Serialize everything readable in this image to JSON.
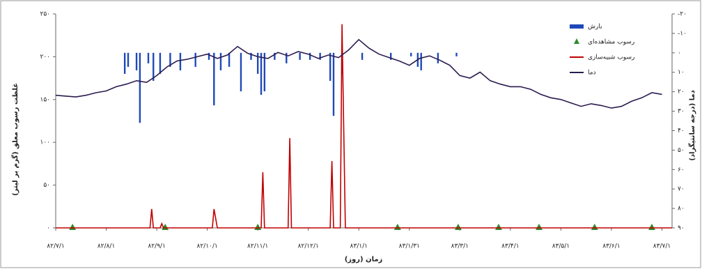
{
  "chart_data": {
    "type": "combo",
    "x_label": "زمان (روز)",
    "y_label": "غلظت رسوب معلق (گرم بر لیتر)",
    "y2_label": "دما (درجه سانتیگراد)",
    "xlim": [
      0,
      366
    ],
    "xticks": [
      {
        "value": 0,
        "label": "۸۲/۷/۱"
      },
      {
        "value": 30,
        "label": "۸۲/۸/۱"
      },
      {
        "value": 60,
        "label": "۸۲/۹/۱"
      },
      {
        "value": 90,
        "label": "۸۲/۱۰/۱"
      },
      {
        "value": 120,
        "label": "۸۲/۱۱/۱"
      },
      {
        "value": 150,
        "label": "۸۲/۱۲/۱"
      },
      {
        "value": 180,
        "label": "۸۳/۱/۱"
      },
      {
        "value": 210,
        "label": "۸۳/۱/۳۱"
      },
      {
        "value": 240,
        "label": "۸۳/۳/۱"
      },
      {
        "value": 270,
        "label": "۸۳/۴/۱"
      },
      {
        "value": 300,
        "label": "۸۳/۵/۱"
      },
      {
        "value": 330,
        "label": "۸۳/۶/۱"
      },
      {
        "value": 360,
        "label": "۸۳/۷/۱"
      }
    ],
    "ylim": [
      0,
      250
    ],
    "yticks": [
      {
        "value": 0,
        "label": "۰"
      },
      {
        "value": 50,
        "label": "۵۰"
      },
      {
        "value": 100,
        "label": "۱۰۰"
      },
      {
        "value": 150,
        "label": "۱۵۰"
      },
      {
        "value": 200,
        "label": "۲۰۰"
      },
      {
        "value": 250,
        "label": "۲۵۰"
      }
    ],
    "y2lim": [
      -20,
      90
    ],
    "y2_inverted": true,
    "y2ticks": [
      {
        "value": -20,
        "label": "-۲۰"
      },
      {
        "value": -10,
        "label": "-۱۰"
      },
      {
        "value": 0,
        "label": "۰"
      },
      {
        "value": 10,
        "label": "۱۰"
      },
      {
        "value": 20,
        "label": "۲۰"
      },
      {
        "value": 30,
        "label": "۳۰"
      },
      {
        "value": 40,
        "label": "۴۰"
      },
      {
        "value": 50,
        "label": "۵۰"
      },
      {
        "value": 60,
        "label": "۶۰"
      },
      {
        "value": 70,
        "label": "۷۰"
      },
      {
        "value": 80,
        "label": "۸۰"
      },
      {
        "value": 90,
        "label": "۹۰"
      }
    ],
    "legend": "upper right",
    "series": [
      {
        "name": "بارش",
        "type": "bar",
        "axis": "y2",
        "color": "#1f49b8",
        "x": [
          41,
          43,
          48,
          50,
          55,
          58,
          62,
          68,
          74,
          83,
          91,
          94,
          98,
          103,
          110,
          116,
          120,
          122,
          124,
          130,
          137,
          145,
          151,
          157,
          163,
          165,
          170,
          182,
          199,
          211,
          215,
          217,
          227,
          238
        ],
        "values": [
          10.8,
          7.2,
          9,
          36,
          5.4,
          14.4,
          10.8,
          7.2,
          9,
          7.2,
          3.6,
          27,
          9,
          7.2,
          19.8,
          3.6,
          10.8,
          21.6,
          19.8,
          3.6,
          5.4,
          3.6,
          3.6,
          3.6,
          14.4,
          32.4,
          10.8,
          3.6,
          3.6,
          1.8,
          7.2,
          9,
          5.4,
          1.8
        ]
      },
      {
        "name": "رسوب مشاهده‌ای",
        "type": "scatter",
        "color": "#2e8b2e",
        "x": [
          10,
          65,
          120,
          203,
          239,
          263,
          287,
          320,
          354
        ],
        "values": [
          0,
          0,
          0,
          0,
          0,
          0,
          0,
          0,
          0
        ]
      },
      {
        "name": "رسوب شبیه‌سازی",
        "type": "line",
        "color": "#c00000",
        "x": [
          0,
          56,
          57,
          58,
          62,
          63,
          64,
          93,
          94,
          96,
          122,
          123,
          124,
          138,
          139,
          140,
          163,
          164,
          165,
          169,
          170,
          172,
          366
        ],
        "values": [
          0,
          0,
          22,
          0,
          0,
          5,
          0,
          0,
          22,
          0,
          0,
          65,
          0,
          0,
          105,
          0,
          0,
          78,
          0,
          0,
          238,
          0,
          0
        ]
      },
      {
        "name": "دما",
        "type": "line",
        "color": "#2b1b4e",
        "x": [
          0,
          6,
          12,
          18,
          24,
          30,
          36,
          42,
          48,
          54,
          60,
          66,
          72,
          78,
          84,
          90,
          96,
          102,
          108,
          114,
          120,
          126,
          132,
          138,
          144,
          150,
          156,
          162,
          168,
          174,
          180,
          186,
          192,
          198,
          204,
          210,
          216,
          222,
          228,
          234,
          240,
          246,
          252,
          258,
          264,
          270,
          276,
          282,
          288,
          294,
          300,
          306,
          312,
          318,
          324,
          330,
          336,
          342,
          348,
          354,
          360
        ],
        "values": [
          155,
          154,
          153,
          155,
          158,
          160,
          165,
          168,
          172,
          170,
          178,
          188,
          195,
          197,
          200,
          203,
          198,
          202,
          212,
          204,
          200,
          198,
          205,
          201,
          206,
          203,
          198,
          202,
          199,
          208,
          220,
          210,
          203,
          199,
          195,
          190,
          198,
          201,
          196,
          190,
          178,
          175,
          182,
          172,
          168,
          165,
          165,
          162,
          156,
          152,
          150,
          146,
          142,
          145,
          143,
          140,
          142,
          148,
          152,
          158,
          156
        ]
      }
    ]
  }
}
